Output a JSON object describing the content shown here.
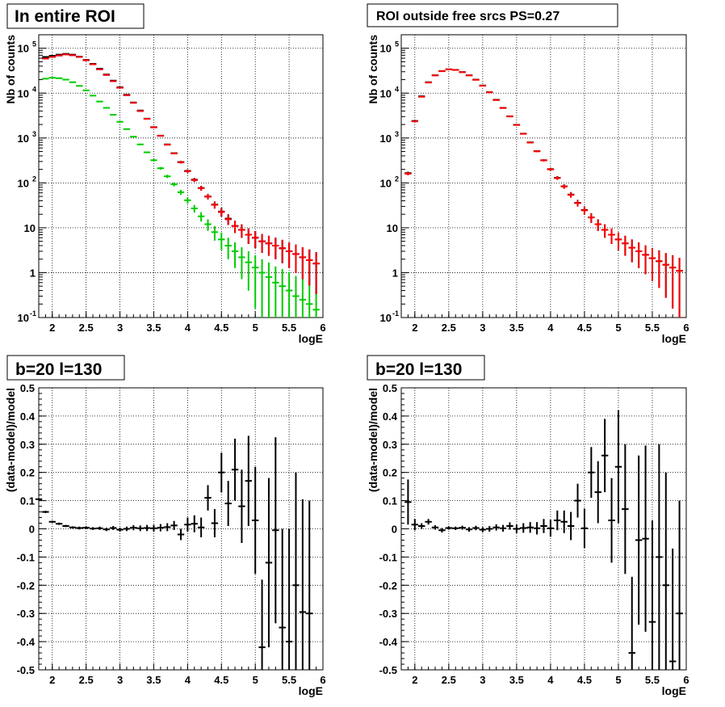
{
  "chart_data": [
    {
      "type": "scatter",
      "title": "In entire ROI",
      "xlabel": "logE",
      "ylabel": "Nb of counts",
      "xlim": [
        1.8,
        6.0
      ],
      "ylim": [
        0.1,
        200000
      ],
      "yscale": "log",
      "grid": true,
      "x_ticks": [
        "2",
        "2.5",
        "3",
        "3.5",
        "4",
        "4.5",
        "5",
        "5.5",
        "6"
      ],
      "y_ticks": [
        "10^{-1}",
        "1",
        "10",
        "10^{2}",
        "10^{3}",
        "10^{4}",
        "10^{5}"
      ],
      "x": [
        1.9,
        2.0,
        2.1,
        2.2,
        2.3,
        2.4,
        2.5,
        2.6,
        2.7,
        2.8,
        2.9,
        3.0,
        3.1,
        3.2,
        3.3,
        3.4,
        3.5,
        3.6,
        3.7,
        3.8,
        3.9,
        4.0,
        4.1,
        4.2,
        4.3,
        4.4,
        4.5,
        4.6,
        4.7,
        4.8,
        4.9,
        5.0,
        5.1,
        5.2,
        5.3,
        5.4,
        5.5,
        5.6,
        5.7,
        5.8,
        5.9
      ],
      "series": [
        {
          "name": "",
          "color": "#000000",
          "values": [
            64000,
            68000,
            72000,
            75000,
            72000,
            65000,
            55000,
            45000,
            35000,
            26000,
            19000,
            13500,
            9200,
            6200,
            4100,
            2700,
            1750,
            1130,
            720,
            460,
            292,
            185,
            118,
            77,
            50,
            33,
            23,
            16,
            11,
            9,
            7,
            6,
            5,
            4.5,
            4,
            3.5,
            3,
            2.6,
            2.2,
            1.9,
            1.6
          ]
        },
        {
          "name": "",
          "color": "#ff0000",
          "values": [
            59000,
            64000,
            69000,
            73000,
            70000,
            64000,
            54000,
            44000,
            34000,
            25500,
            18500,
            13200,
            9000,
            6100,
            4000,
            2680,
            1730,
            1120,
            710,
            455,
            288,
            182,
            116,
            76,
            49.5,
            32.5,
            22.5,
            15.5,
            11,
            9,
            7,
            6,
            5,
            4.5,
            4,
            3.5,
            3,
            2.6,
            2.2,
            1.9,
            1.6
          ]
        },
        {
          "name": "",
          "color": "#0000ff",
          "values": [
            59000,
            64000,
            69000,
            73000,
            70000,
            64000,
            54000,
            44000,
            34000,
            25500,
            18500,
            13200,
            9000,
            6100,
            4000,
            2680,
            1730,
            1120,
            710,
            455,
            288,
            182,
            116,
            76,
            49.5,
            32.5,
            22.5,
            15.5,
            11,
            9,
            7,
            6,
            5,
            4.5,
            4,
            3.5,
            3,
            2.6,
            2.2,
            1.9,
            1.6
          ]
        },
        {
          "name": "",
          "color": "#00cc00",
          "values": [
            21000,
            22000,
            21500,
            20000,
            17500,
            14500,
            11500,
            8800,
            6500,
            4700,
            3300,
            2300,
            1580,
            1070,
            720,
            480,
            320,
            212,
            140,
            93,
            62,
            41,
            27,
            18,
            12,
            8,
            5.5,
            4,
            3,
            2.2,
            1.7,
            1.3,
            1,
            0.8,
            0.6,
            0.5,
            0.4,
            0.3,
            0.25,
            0.2,
            0.15
          ]
        }
      ]
    },
    {
      "type": "scatter",
      "title": "ROI outside free srcs PS=0.27",
      "xlabel": "logE",
      "ylabel": "Nb of counts",
      "xlim": [
        1.8,
        6.0
      ],
      "ylim": [
        0.1,
        200000
      ],
      "yscale": "log",
      "grid": true,
      "x_ticks": [
        "2",
        "2.5",
        "3",
        "3.5",
        "4",
        "4.5",
        "5",
        "5.5",
        "6"
      ],
      "y_ticks": [
        "10^{-1}",
        "1",
        "10",
        "10^{2}",
        "10^{3}",
        "10^{4}",
        "10^{5}"
      ],
      "x": [
        1.9,
        2.0,
        2.1,
        2.2,
        2.3,
        2.4,
        2.5,
        2.6,
        2.7,
        2.8,
        2.9,
        3.0,
        3.1,
        3.2,
        3.3,
        3.4,
        3.5,
        3.6,
        3.7,
        3.8,
        3.9,
        4.0,
        4.1,
        4.2,
        4.3,
        4.4,
        4.5,
        4.6,
        4.7,
        4.8,
        4.9,
        5.0,
        5.1,
        5.2,
        5.3,
        5.4,
        5.5,
        5.6,
        5.7,
        5.8,
        5.9
      ],
      "series": [
        {
          "name": "",
          "color": "#000000",
          "values": [
            165,
            2400,
            8500,
            17500,
            25000,
            31000,
            34000,
            33000,
            29500,
            25000,
            20000,
            14800,
            10500,
            7100,
            4700,
            3050,
            1970,
            1250,
            800,
            510,
            320,
            203,
            130,
            84,
            55,
            36,
            25,
            17,
            12,
            9,
            7,
            5.5,
            4.5,
            3.6,
            3,
            2.5,
            2.1,
            1.8,
            1.5,
            1.3,
            1.1
          ]
        },
        {
          "name": "",
          "color": "#ff0000",
          "values": [
            160,
            2350,
            8300,
            17200,
            24800,
            30800,
            33800,
            32800,
            29300,
            24800,
            19800,
            14600,
            10400,
            7000,
            4650,
            3020,
            1950,
            1240,
            790,
            505,
            318,
            200,
            128,
            83,
            54,
            35.5,
            24.5,
            17,
            12,
            9,
            7,
            5.5,
            4.5,
            3.6,
            3,
            2.5,
            2.1,
            1.8,
            1.5,
            1.3,
            1.1
          ]
        }
      ]
    },
    {
      "type": "scatter",
      "title": "b=20 l=130",
      "xlabel": "logE",
      "ylabel": "(data-model)/model",
      "xlim": [
        1.8,
        6.0
      ],
      "ylim": [
        -0.5,
        0.5
      ],
      "grid": true,
      "x_ticks": [
        "2",
        "2.5",
        "3",
        "3.5",
        "4",
        "4.5",
        "5",
        "5.5",
        "6"
      ],
      "y_ticks": [
        "-0.5",
        "-0.4",
        "-0.3",
        "-0.2",
        "-0.1",
        "0",
        "0.1",
        "0.2",
        "0.3",
        "0.4",
        "0.5"
      ],
      "x": [
        1.8,
        1.9,
        2.0,
        2.1,
        2.2,
        2.3,
        2.4,
        2.5,
        2.6,
        2.7,
        2.8,
        2.9,
        3.0,
        3.1,
        3.2,
        3.3,
        3.4,
        3.5,
        3.6,
        3.7,
        3.8,
        3.9,
        4.0,
        4.1,
        4.2,
        4.3,
        4.4,
        4.5,
        4.6,
        4.7,
        4.8,
        4.9,
        5.0,
        5.1,
        5.2,
        5.3,
        5.4,
        5.5,
        5.6,
        5.7,
        5.8
      ],
      "y": [
        0.105,
        0.06,
        0.025,
        0.018,
        0.01,
        0.005,
        0.003,
        0.004,
        0.001,
        0.002,
        -0.002,
        0.003,
        -0.003,
        0.0,
        0.004,
        0.002,
        0.003,
        0.002,
        0.004,
        0.006,
        0.012,
        -0.02,
        0.015,
        0.018,
        0.005,
        0.11,
        0.02,
        0.2,
        0.09,
        0.21,
        0.08,
        0.17,
        0.03,
        -0.42,
        -0.12,
        -0.005,
        -0.35,
        -0.4,
        -0.2,
        -0.295,
        -0.3
      ],
      "yerr": [
        0.003,
        0.004,
        0.004,
        0.004,
        0.004,
        0.004,
        0.005,
        0.005,
        0.005,
        0.006,
        0.006,
        0.007,
        0.007,
        0.008,
        0.009,
        0.01,
        0.011,
        0.012,
        0.013,
        0.014,
        0.016,
        0.02,
        0.025,
        0.03,
        0.035,
        0.045,
        0.05,
        0.07,
        0.08,
        0.11,
        0.13,
        0.16,
        0.19,
        0.24,
        0.3,
        0.33,
        0.35,
        0.4,
        0.4,
        0.4,
        0.4
      ]
    },
    {
      "type": "scatter",
      "title": "b=20 l=130",
      "xlabel": "logE",
      "ylabel": "(data-model)/model",
      "xlim": [
        1.8,
        6.0
      ],
      "ylim": [
        -0.5,
        0.5
      ],
      "grid": true,
      "x_ticks": [
        "2",
        "2.5",
        "3",
        "3.5",
        "4",
        "4.5",
        "5",
        "5.5",
        "6"
      ],
      "y_ticks": [
        "-0.5",
        "-0.4",
        "-0.3",
        "-0.2",
        "-0.1",
        "0",
        "0.1",
        "0.2",
        "0.3",
        "0.4",
        "0.5"
      ],
      "x": [
        1.9,
        2.0,
        2.1,
        2.2,
        2.3,
        2.4,
        2.5,
        2.6,
        2.7,
        2.8,
        2.9,
        3.0,
        3.1,
        3.2,
        3.3,
        3.4,
        3.5,
        3.6,
        3.7,
        3.8,
        3.9,
        4.0,
        4.1,
        4.2,
        4.3,
        4.4,
        4.5,
        4.6,
        4.7,
        4.8,
        4.9,
        5.0,
        5.1,
        5.2,
        5.3,
        5.4,
        5.5,
        5.6,
        5.7,
        5.8,
        5.9
      ],
      "y": [
        0.095,
        0.015,
        0.01,
        0.025,
        0.005,
        -0.005,
        0.003,
        0.002,
        0.004,
        -0.002,
        0.003,
        -0.003,
        0.0,
        0.005,
        0.002,
        0.01,
        0.0,
        0.003,
        0.005,
        0.002,
        0.01,
        0.002,
        0.03,
        0.025,
        0.01,
        0.1,
        0.002,
        0.2,
        0.13,
        0.26,
        0.03,
        0.22,
        0.07,
        -0.44,
        -0.04,
        -0.035,
        -0.33,
        -0.1,
        -0.2,
        -0.47,
        -0.3
      ],
      "yerr": [
        0.08,
        0.02,
        0.01,
        0.01,
        0.008,
        0.008,
        0.006,
        0.006,
        0.007,
        0.008,
        0.008,
        0.009,
        0.01,
        0.011,
        0.012,
        0.013,
        0.015,
        0.017,
        0.019,
        0.022,
        0.025,
        0.03,
        0.035,
        0.04,
        0.05,
        0.06,
        0.07,
        0.09,
        0.11,
        0.13,
        0.15,
        0.2,
        0.23,
        0.27,
        0.3,
        0.33,
        0.36,
        0.4,
        0.4,
        0.4,
        0.4
      ]
    }
  ]
}
